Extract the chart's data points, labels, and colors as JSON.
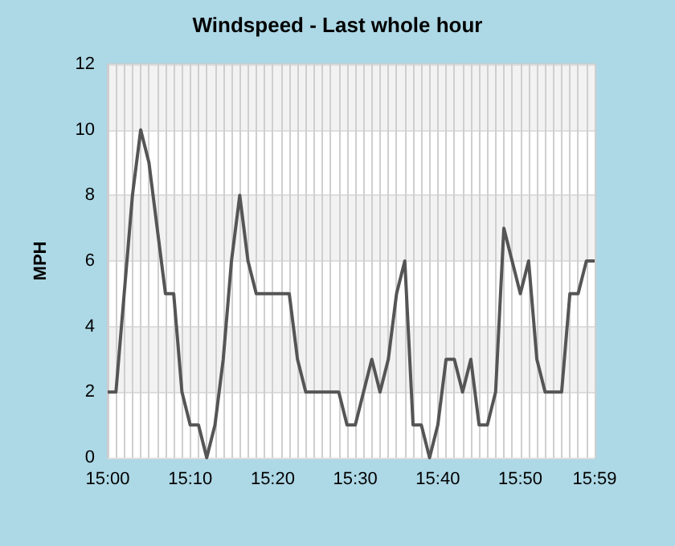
{
  "chart_data": {
    "type": "line",
    "title": "Windspeed - Last whole hour",
    "ylabel": "MPH",
    "categories": [
      "15:00",
      null,
      null,
      null,
      null,
      null,
      null,
      null,
      null,
      null,
      "15:10",
      null,
      null,
      null,
      null,
      null,
      null,
      null,
      null,
      null,
      "15:20",
      null,
      null,
      null,
      null,
      null,
      null,
      null,
      null,
      null,
      "15:30",
      null,
      null,
      null,
      null,
      null,
      null,
      null,
      null,
      null,
      "15:40",
      null,
      null,
      null,
      null,
      null,
      null,
      null,
      null,
      null,
      "15:50",
      null,
      null,
      null,
      null,
      null,
      null,
      null,
      null,
      "15:59"
    ],
    "series": [
      {
        "color": "#555555",
        "values": [
          2,
          2,
          5,
          8,
          10,
          9,
          7,
          5,
          5,
          2,
          1,
          1,
          0,
          1,
          3,
          6,
          8,
          6,
          5,
          5,
          5,
          5,
          5,
          3,
          2,
          2,
          2,
          2,
          2,
          1,
          1,
          2,
          3,
          2,
          3,
          5,
          6,
          1,
          1,
          0,
          1,
          3,
          3,
          2,
          3,
          1,
          1,
          2,
          7,
          6,
          5,
          6,
          3,
          2,
          2,
          2,
          5,
          5,
          6,
          6
        ]
      }
    ],
    "ylim": [
      0,
      12
    ],
    "yticks": [
      0,
      2,
      4,
      6,
      8,
      10,
      12
    ],
    "grid": true,
    "marker": "none",
    "line_style": "solid"
  }
}
